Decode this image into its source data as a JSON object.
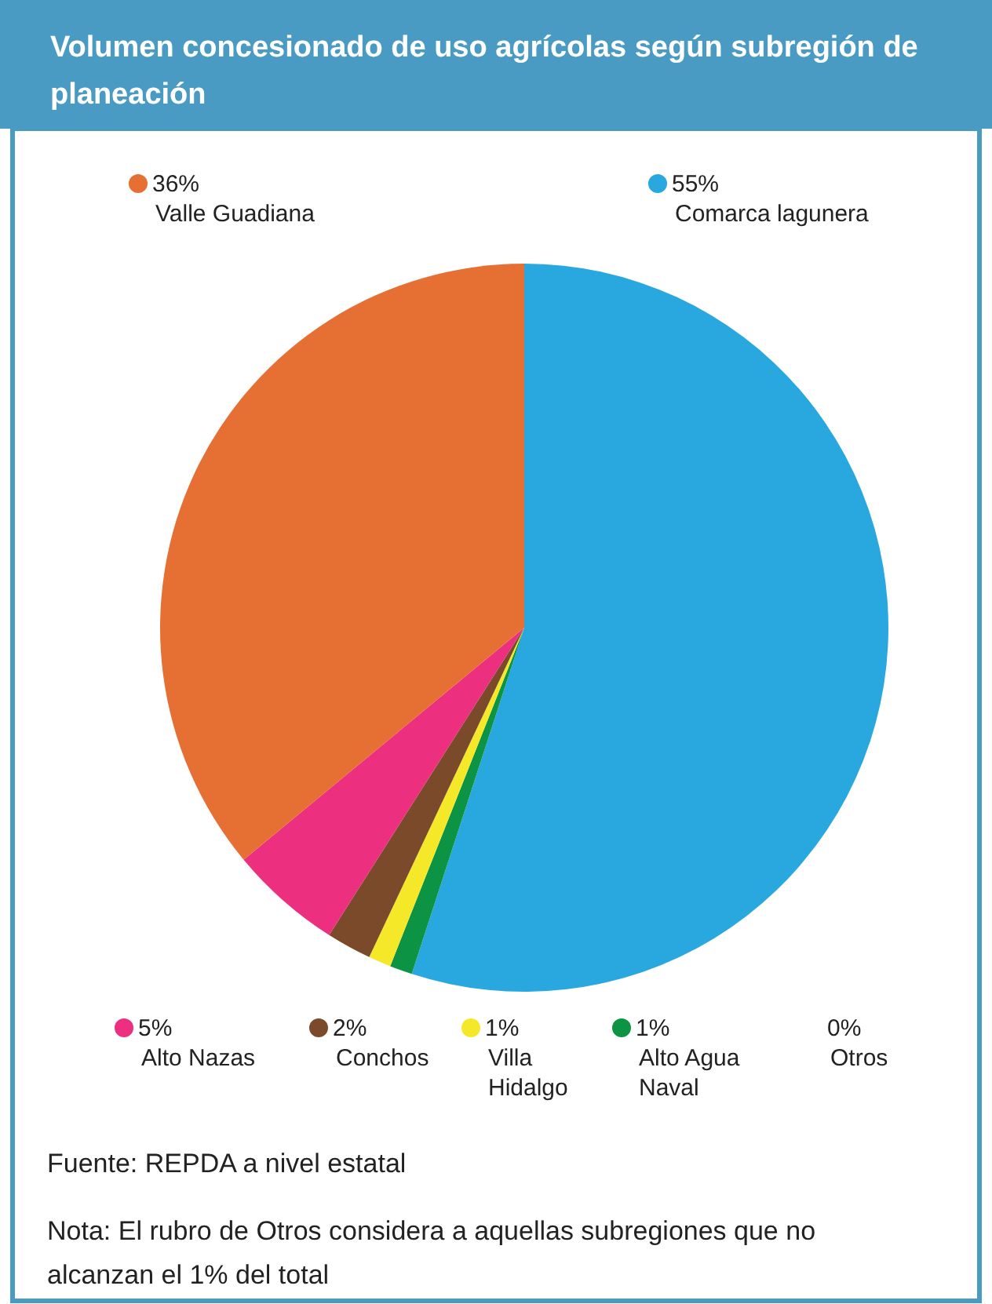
{
  "chart_data": {
    "type": "pie",
    "title": "Volumen concesionado de uso agrícolas según subregión de planeación",
    "categories": [
      "Comarca lagunera",
      "Alto Agua Naval",
      "Villa Hidalgo",
      "Conchos",
      "Alto Nazas",
      "Valle Guadiana",
      "Otros"
    ],
    "values": [
      55,
      1,
      1,
      2,
      5,
      36,
      0
    ],
    "colors": [
      "#29a8e0",
      "#0c9444",
      "#f5e829",
      "#7a4a2a",
      "#ec2f7e",
      "#e67033",
      null
    ],
    "legend": "bottom",
    "value_labels": [
      "55%",
      "1%",
      "1%",
      "2%",
      "5%",
      "36%",
      "0%"
    ],
    "annotations": [
      "Fuente: REPDA a nivel estatal",
      "Nota: El rubro de Otros considera a aquellas subregiones que no alcanzan el 1% del total"
    ]
  }
}
